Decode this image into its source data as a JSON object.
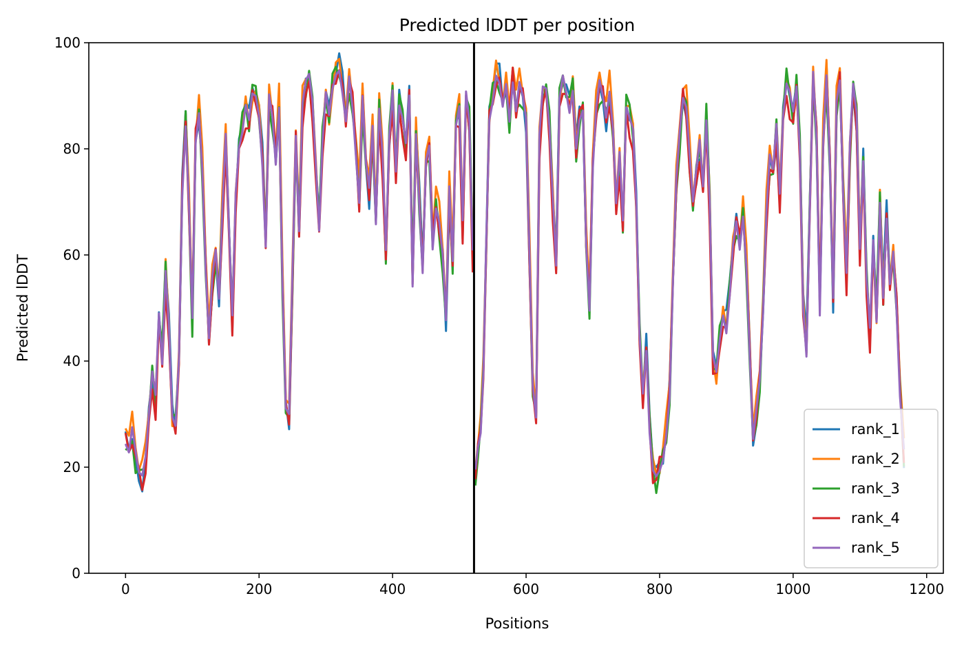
{
  "chart_data": {
    "type": "line",
    "title": "Predicted lDDT per position",
    "xlabel": "Positions",
    "ylabel": "Predicted lDDT",
    "xlim": [
      -55,
      1225
    ],
    "ylim": [
      0,
      100
    ],
    "xticks": [
      0,
      200,
      400,
      600,
      800,
      1000,
      1200
    ],
    "yticks": [
      0,
      20,
      40,
      60,
      80,
      100
    ],
    "grid": false,
    "legend_position": "lower-right",
    "chain_break": 522,
    "x_end": 1166,
    "series": [
      {
        "name": "rank_1",
        "color": "#1f77b4"
      },
      {
        "name": "rank_2",
        "color": "#ff7f0e"
      },
      {
        "name": "rank_3",
        "color": "#2ca02c"
      },
      {
        "name": "rank_4",
        "color": "#d62728"
      },
      {
        "name": "rank_5",
        "color": "#9467bd"
      }
    ],
    "profile": [
      [
        0,
        25
      ],
      [
        5,
        24
      ],
      [
        10,
        27
      ],
      [
        15,
        22
      ],
      [
        20,
        19
      ],
      [
        25,
        18
      ],
      [
        30,
        21
      ],
      [
        35,
        30
      ],
      [
        40,
        38
      ],
      [
        45,
        32
      ],
      [
        50,
        48
      ],
      [
        55,
        40
      ],
      [
        60,
        57
      ],
      [
        65,
        46
      ],
      [
        70,
        30
      ],
      [
        75,
        28
      ],
      [
        80,
        40
      ],
      [
        85,
        72
      ],
      [
        90,
        86
      ],
      [
        95,
        70
      ],
      [
        100,
        48
      ],
      [
        105,
        82
      ],
      [
        110,
        87
      ],
      [
        115,
        76
      ],
      [
        120,
        58
      ],
      [
        125,
        45
      ],
      [
        130,
        55
      ],
      [
        135,
        60
      ],
      [
        140,
        52
      ],
      [
        145,
        68
      ],
      [
        150,
        82
      ],
      [
        155,
        65
      ],
      [
        160,
        48
      ],
      [
        165,
        70
      ],
      [
        170,
        80
      ],
      [
        175,
        84
      ],
      [
        180,
        88
      ],
      [
        185,
        85
      ],
      [
        190,
        91
      ],
      [
        195,
        90
      ],
      [
        200,
        86
      ],
      [
        205,
        78
      ],
      [
        210,
        63
      ],
      [
        215,
        90
      ],
      [
        220,
        86
      ],
      [
        225,
        78
      ],
      [
        230,
        88
      ],
      [
        235,
        55
      ],
      [
        240,
        32
      ],
      [
        245,
        30
      ],
      [
        250,
        55
      ],
      [
        255,
        82
      ],
      [
        260,
        65
      ],
      [
        265,
        88
      ],
      [
        270,
        92
      ],
      [
        275,
        94
      ],
      [
        280,
        88
      ],
      [
        285,
        76
      ],
      [
        290,
        65
      ],
      [
        295,
        82
      ],
      [
        300,
        90
      ],
      [
        305,
        86
      ],
      [
        310,
        92
      ],
      [
        315,
        94
      ],
      [
        320,
        95
      ],
      [
        325,
        92
      ],
      [
        330,
        86
      ],
      [
        335,
        93
      ],
      [
        340,
        88
      ],
      [
        345,
        80
      ],
      [
        350,
        70
      ],
      [
        355,
        90
      ],
      [
        360,
        78
      ],
      [
        365,
        72
      ],
      [
        370,
        83
      ],
      [
        375,
        66
      ],
      [
        380,
        88
      ],
      [
        385,
        78
      ],
      [
        390,
        60
      ],
      [
        395,
        82
      ],
      [
        400,
        90
      ],
      [
        405,
        75
      ],
      [
        410,
        89
      ],
      [
        415,
        86
      ],
      [
        420,
        80
      ],
      [
        425,
        90
      ],
      [
        430,
        55
      ],
      [
        435,
        83
      ],
      [
        440,
        70
      ],
      [
        445,
        58
      ],
      [
        450,
        78
      ],
      [
        455,
        80
      ],
      [
        460,
        62
      ],
      [
        465,
        70
      ],
      [
        470,
        66
      ],
      [
        475,
        60
      ],
      [
        480,
        48
      ],
      [
        485,
        72
      ],
      [
        490,
        58
      ],
      [
        495,
        85
      ],
      [
        500,
        88
      ],
      [
        505,
        65
      ],
      [
        510,
        90
      ],
      [
        515,
        85
      ],
      [
        520,
        60
      ],
      null,
      [
        524,
        18
      ],
      [
        528,
        24
      ],
      [
        532,
        28
      ],
      [
        536,
        38
      ],
      [
        540,
        60
      ],
      [
        545,
        86
      ],
      [
        550,
        90
      ],
      [
        555,
        94
      ],
      [
        560,
        93
      ],
      [
        565,
        89
      ],
      [
        570,
        92
      ],
      [
        575,
        85
      ],
      [
        580,
        94
      ],
      [
        585,
        88
      ],
      [
        590,
        92
      ],
      [
        595,
        90
      ],
      [
        600,
        86
      ],
      [
        605,
        60
      ],
      [
        610,
        35
      ],
      [
        615,
        30
      ],
      [
        620,
        82
      ],
      [
        625,
        90
      ],
      [
        630,
        91
      ],
      [
        635,
        84
      ],
      [
        640,
        70
      ],
      [
        645,
        58
      ],
      [
        650,
        90
      ],
      [
        655,
        93
      ],
      [
        660,
        90
      ],
      [
        665,
        88
      ],
      [
        670,
        92
      ],
      [
        675,
        80
      ],
      [
        680,
        86
      ],
      [
        685,
        88
      ],
      [
        690,
        62
      ],
      [
        695,
        50
      ],
      [
        700,
        78
      ],
      [
        705,
        88
      ],
      [
        710,
        92
      ],
      [
        715,
        90
      ],
      [
        720,
        86
      ],
      [
        725,
        90
      ],
      [
        730,
        84
      ],
      [
        735,
        70
      ],
      [
        740,
        78
      ],
      [
        745,
        65
      ],
      [
        750,
        88
      ],
      [
        755,
        86
      ],
      [
        760,
        83
      ],
      [
        765,
        70
      ],
      [
        770,
        45
      ],
      [
        775,
        33
      ],
      [
        780,
        42
      ],
      [
        785,
        28
      ],
      [
        790,
        20
      ],
      [
        795,
        18
      ],
      [
        800,
        20
      ],
      [
        805,
        22
      ],
      [
        810,
        26
      ],
      [
        815,
        34
      ],
      [
        820,
        56
      ],
      [
        825,
        74
      ],
      [
        830,
        82
      ],
      [
        835,
        90
      ],
      [
        840,
        88
      ],
      [
        845,
        78
      ],
      [
        850,
        70
      ],
      [
        855,
        76
      ],
      [
        860,
        80
      ],
      [
        865,
        72
      ],
      [
        870,
        86
      ],
      [
        875,
        70
      ],
      [
        880,
        40
      ],
      [
        885,
        38
      ],
      [
        890,
        44
      ],
      [
        895,
        48
      ],
      [
        900,
        46
      ],
      [
        905,
        54
      ],
      [
        910,
        62
      ],
      [
        915,
        66
      ],
      [
        920,
        62
      ],
      [
        925,
        68
      ],
      [
        930,
        58
      ],
      [
        935,
        42
      ],
      [
        940,
        26
      ],
      [
        945,
        30
      ],
      [
        950,
        36
      ],
      [
        955,
        50
      ],
      [
        960,
        68
      ],
      [
        965,
        78
      ],
      [
        970,
        76
      ],
      [
        975,
        84
      ],
      [
        980,
        70
      ],
      [
        985,
        86
      ],
      [
        990,
        93
      ],
      [
        995,
        90
      ],
      [
        1000,
        86
      ],
      [
        1005,
        92
      ],
      [
        1010,
        80
      ],
      [
        1015,
        50
      ],
      [
        1020,
        42
      ],
      [
        1025,
        70
      ],
      [
        1030,
        94
      ],
      [
        1035,
        82
      ],
      [
        1040,
        50
      ],
      [
        1045,
        82
      ],
      [
        1050,
        94
      ],
      [
        1055,
        78
      ],
      [
        1060,
        52
      ],
      [
        1065,
        88
      ],
      [
        1070,
        93
      ],
      [
        1075,
        72
      ],
      [
        1080,
        56
      ],
      [
        1085,
        80
      ],
      [
        1090,
        92
      ],
      [
        1095,
        86
      ],
      [
        1100,
        60
      ],
      [
        1105,
        78
      ],
      [
        1110,
        56
      ],
      [
        1115,
        45
      ],
      [
        1120,
        62
      ],
      [
        1125,
        48
      ],
      [
        1130,
        70
      ],
      [
        1135,
        52
      ],
      [
        1140,
        68
      ],
      [
        1145,
        55
      ],
      [
        1150,
        60
      ],
      [
        1155,
        50
      ],
      [
        1160,
        35
      ],
      [
        1166,
        22
      ]
    ]
  }
}
